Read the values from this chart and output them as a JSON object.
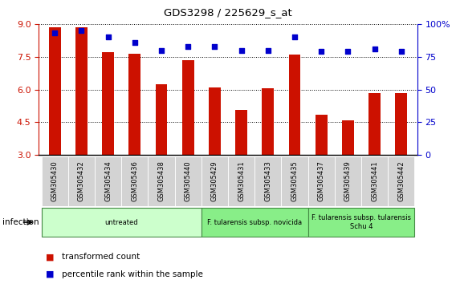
{
  "title": "GDS3298 / 225629_s_at",
  "samples": [
    "GSM305430",
    "GSM305432",
    "GSM305434",
    "GSM305436",
    "GSM305438",
    "GSM305440",
    "GSM305429",
    "GSM305431",
    "GSM305433",
    "GSM305435",
    "GSM305437",
    "GSM305439",
    "GSM305441",
    "GSM305442"
  ],
  "transformed_count": [
    8.85,
    8.85,
    7.7,
    7.65,
    6.25,
    7.35,
    6.1,
    5.05,
    6.05,
    7.62,
    4.85,
    4.6,
    5.85,
    5.82
  ],
  "percentile_rank": [
    93,
    95,
    90,
    86,
    80,
    83,
    83,
    80,
    80,
    90,
    79,
    79,
    81,
    79
  ],
  "bar_color": "#cc1100",
  "dot_color": "#0000cc",
  "ylim_left": [
    3,
    9
  ],
  "ylim_right": [
    0,
    100
  ],
  "yticks_left": [
    3,
    4.5,
    6,
    7.5,
    9
  ],
  "yticks_right": [
    0,
    25,
    50,
    75,
    100
  ],
  "groups": [
    {
      "label": "untreated",
      "start": 0,
      "end": 6,
      "color": "#ccffcc"
    },
    {
      "label": "F. tularensis subsp. novicida",
      "start": 6,
      "end": 10,
      "color": "#88ee88"
    },
    {
      "label": "F. tularensis subsp. tularensis\nSchu 4",
      "start": 10,
      "end": 14,
      "color": "#88ee88"
    }
  ],
  "infection_label": "infection",
  "legend_items": [
    {
      "color": "#cc1100",
      "label": "transformed count"
    },
    {
      "color": "#0000cc",
      "label": "percentile rank within the sample"
    }
  ]
}
